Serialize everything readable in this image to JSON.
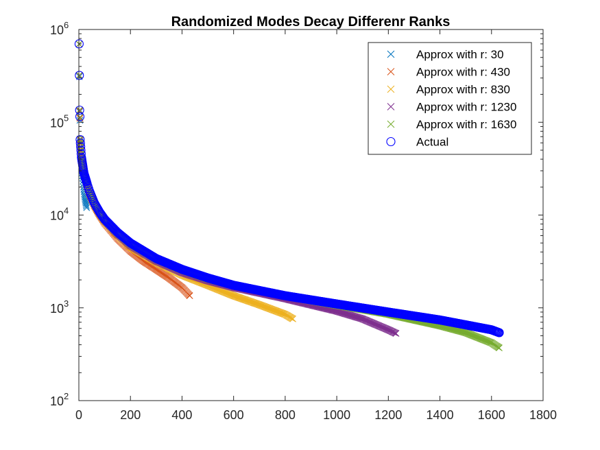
{
  "chart_data": {
    "type": "scatter",
    "title": "Randomized Modes Decay Differenr Ranks",
    "xlabel": "",
    "ylabel": "",
    "xlim": [
      0,
      1800
    ],
    "ylim": [
      100,
      1000000
    ],
    "yscale": "log",
    "x_ticks": [
      {
        "value": 0,
        "label": "0"
      },
      {
        "value": 200,
        "label": "200"
      },
      {
        "value": 400,
        "label": "400"
      },
      {
        "value": 600,
        "label": "600"
      },
      {
        "value": 800,
        "label": "800"
      },
      {
        "value": 1000,
        "label": "1000"
      },
      {
        "value": 1200,
        "label": "1200"
      },
      {
        "value": 1400,
        "label": "1400"
      },
      {
        "value": 1600,
        "label": "1600"
      },
      {
        "value": 1800,
        "label": "1800"
      }
    ],
    "y_ticks": [
      {
        "value": 100,
        "base": "10",
        "exp": "2"
      },
      {
        "value": 1000,
        "base": "10",
        "exp": "3"
      },
      {
        "value": 10000,
        "base": "10",
        "exp": "4"
      },
      {
        "value": 100000,
        "base": "10",
        "exp": "5"
      },
      {
        "value": 1000000,
        "base": "10",
        "exp": "6"
      }
    ],
    "grid": false,
    "legend_position": "top-right",
    "series": [
      {
        "name": "Approx with r: 30",
        "marker": "x",
        "color": "#0072BD",
        "rank": 30,
        "x": [
          1,
          2,
          3,
          4,
          5,
          6,
          8,
          10,
          12,
          15,
          18,
          21,
          24,
          27,
          30
        ],
        "y": [
          695000,
          310000,
          130000,
          105000,
          62000,
          50000,
          42000,
          36000,
          30000,
          25000,
          20000,
          17000,
          15000,
          13500,
          12000
        ]
      },
      {
        "name": "Approx with r: 430",
        "marker": "x",
        "color": "#D95319",
        "rank": 430,
        "x": [
          1,
          2,
          3,
          4,
          5,
          10,
          20,
          40,
          60,
          80,
          100,
          150,
          200,
          250,
          300,
          350,
          400,
          430
        ],
        "y": [
          695000,
          318000,
          132000,
          110000,
          64000,
          40000,
          27000,
          17000,
          12500,
          10000,
          8200,
          5600,
          4100,
          3200,
          2600,
          2100,
          1650,
          1350
        ]
      },
      {
        "name": "Approx with r: 830",
        "marker": "x",
        "color": "#EDB120",
        "rank": 830,
        "x": [
          1,
          2,
          3,
          4,
          5,
          10,
          20,
          40,
          60,
          80,
          100,
          150,
          200,
          300,
          400,
          500,
          600,
          700,
          800,
          830
        ],
        "y": [
          697000,
          320000,
          134000,
          112000,
          65000,
          41000,
          27500,
          17500,
          12800,
          10200,
          8500,
          6000,
          4500,
          3100,
          2250,
          1750,
          1350,
          1080,
          850,
          760
        ]
      },
      {
        "name": "Approx with r: 1230",
        "marker": "x",
        "color": "#7E2F8E",
        "rank": 1230,
        "x": [
          1,
          2,
          3,
          4,
          5,
          10,
          20,
          40,
          60,
          80,
          100,
          150,
          200,
          300,
          400,
          500,
          600,
          800,
          1000,
          1100,
          1200,
          1230
        ],
        "y": [
          697000,
          321000,
          135000,
          113000,
          65500,
          41500,
          27800,
          17700,
          13000,
          10400,
          8700,
          6200,
          4700,
          3200,
          2400,
          1950,
          1650,
          1250,
          920,
          760,
          580,
          530
        ]
      },
      {
        "name": "Approx with r: 1630",
        "marker": "x",
        "color": "#77AC30",
        "rank": 1630,
        "x": [
          1,
          2,
          3,
          4,
          5,
          10,
          20,
          40,
          60,
          80,
          100,
          150,
          200,
          300,
          400,
          500,
          600,
          800,
          1000,
          1200,
          1400,
          1500,
          1600,
          1630
        ],
        "y": [
          698000,
          322000,
          136000,
          114000,
          66000,
          42000,
          28000,
          18000,
          13200,
          10600,
          8900,
          6400,
          4900,
          3350,
          2550,
          2050,
          1720,
          1330,
          1060,
          850,
          640,
          540,
          420,
          370
        ]
      },
      {
        "name": "Actual",
        "marker": "o",
        "color": "#0000FF",
        "rank": 1630,
        "x": [
          1,
          2,
          3,
          4,
          5,
          10,
          20,
          40,
          60,
          80,
          100,
          150,
          200,
          300,
          400,
          500,
          600,
          800,
          1000,
          1200,
          1400,
          1600,
          1630
        ],
        "y": [
          700000,
          320000,
          135000,
          115000,
          65000,
          42000,
          28000,
          18500,
          13500,
          10800,
          9000,
          6500,
          5000,
          3400,
          2600,
          2100,
          1750,
          1350,
          1100,
          900,
          740,
          580,
          540
        ]
      }
    ]
  }
}
